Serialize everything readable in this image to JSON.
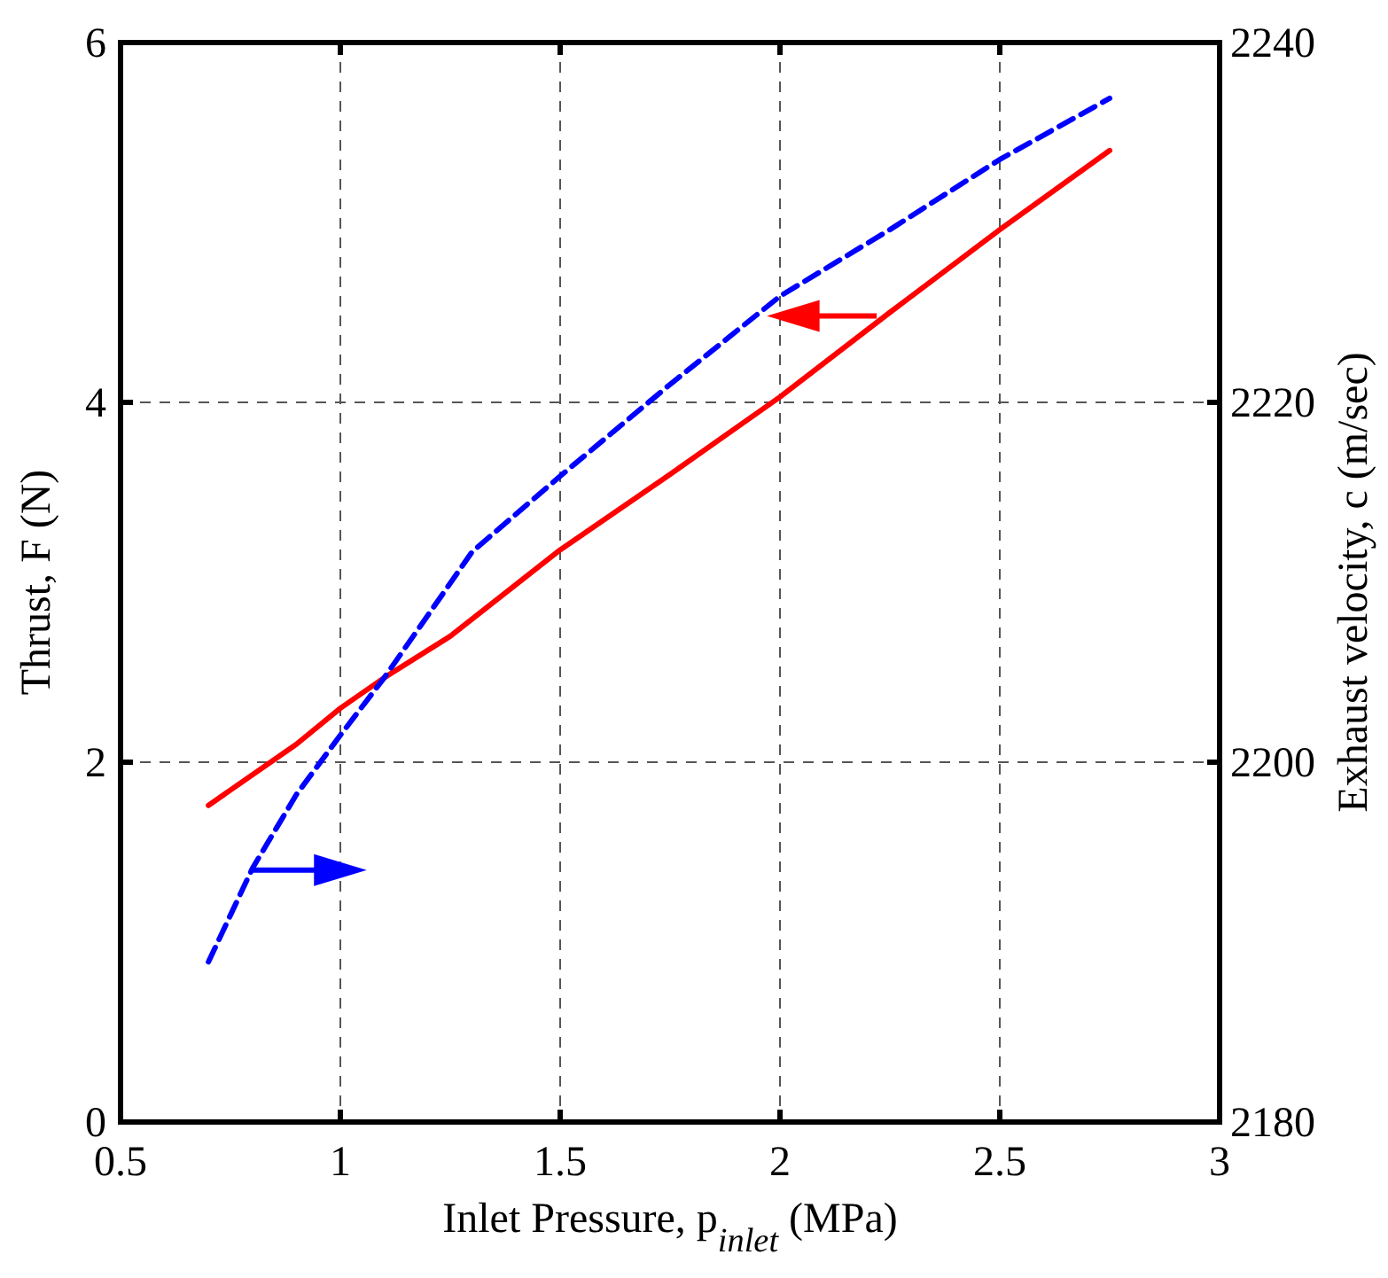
{
  "chart_data": {
    "type": "line",
    "xlabel": "Inlet Pressure,  p$_{inlet}$ (MPa)",
    "ylabel": "Thrust,  F (N)",
    "y2label": "Exhaust velocity,  c (m/sec)",
    "xlim": [
      0.5,
      3
    ],
    "xticks": [
      0.5,
      1,
      1.5,
      2,
      2.5,
      3
    ],
    "ylim": [
      0,
      6
    ],
    "yticks": [
      0,
      2,
      4,
      6
    ],
    "y2lim": [
      2180,
      2240
    ],
    "y2ticks": [
      2180,
      2200,
      2220,
      2240
    ],
    "grid": true,
    "series": [
      {
        "color": "#ff0000",
        "line_style": "solid",
        "x": [
          0.7,
          0.9,
          1.0,
          1.1,
          1.25,
          1.5,
          1.75,
          2.0,
          2.25,
          2.5,
          2.75
        ],
        "values": [
          1.76,
          2.1,
          2.3,
          2.47,
          2.7,
          3.18,
          3.6,
          4.03,
          4.5,
          4.96,
          5.4
        ]
      },
      {
        "color": "#0000ff",
        "line_style": "dashed",
        "axis": "y2",
        "x": [
          0.7,
          0.8,
          0.9,
          1.0,
          1.1,
          1.3,
          1.5,
          1.75,
          2.0,
          2.25,
          2.5,
          2.75
        ],
        "values": [
          2188.9,
          2194.1,
          2198.2,
          2201.5,
          2204.7,
          2211.7,
          2215.9,
          2221.0,
          2225.9,
          2229.6,
          2233.5,
          2236.9
        ]
      }
    ]
  }
}
